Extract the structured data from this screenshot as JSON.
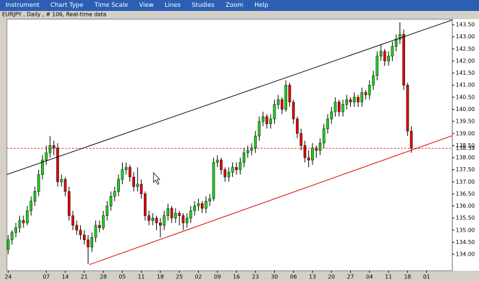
{
  "menu": [
    "Instrument",
    "Chart Type",
    "Time Scale",
    "View",
    "Lines",
    "Studies",
    "Zoom",
    "Help"
  ],
  "chart_data": {
    "type": "candlestick",
    "title": "EURJPY , Daily , # 106, Real-time data",
    "up_color": "#19d219",
    "down_color": "#e00000",
    "candles": [
      [
        134.2,
        134.8,
        134.0,
        134.6
      ],
      [
        134.6,
        135.0,
        134.4,
        134.9
      ],
      [
        134.9,
        135.3,
        134.7,
        135.1
      ],
      [
        135.1,
        135.6,
        134.9,
        135.4
      ],
      [
        135.4,
        135.6,
        135.1,
        135.3
      ],
      [
        135.3,
        136.0,
        135.2,
        135.8
      ],
      [
        135.8,
        136.4,
        135.6,
        136.2
      ],
      [
        136.2,
        136.8,
        136.0,
        136.6
      ],
      [
        136.6,
        137.5,
        136.4,
        137.3
      ],
      [
        137.3,
        138.1,
        137.1,
        137.9
      ],
      [
        137.9,
        138.5,
        137.7,
        138.2
      ],
      [
        138.2,
        138.9,
        138.0,
        138.5
      ],
      [
        138.5,
        138.7,
        138.1,
        138.4
      ],
      [
        138.4,
        138.6,
        136.8,
        137.0
      ],
      [
        137.0,
        137.3,
        136.8,
        137.1
      ],
      [
        137.1,
        137.2,
        136.4,
        136.6
      ],
      [
        136.6,
        136.8,
        135.4,
        135.6
      ],
      [
        135.6,
        135.8,
        135.0,
        135.2
      ],
      [
        135.2,
        135.4,
        134.8,
        135.0
      ],
      [
        135.0,
        135.2,
        134.6,
        134.8
      ],
      [
        134.8,
        135.0,
        134.4,
        134.6
      ],
      [
        134.6,
        134.8,
        133.6,
        134.3
      ],
      [
        134.3,
        134.9,
        134.1,
        134.7
      ],
      [
        134.7,
        135.4,
        134.5,
        135.2
      ],
      [
        135.2,
        135.4,
        134.9,
        135.1
      ],
      [
        135.1,
        135.8,
        135.0,
        135.6
      ],
      [
        135.6,
        136.2,
        135.4,
        136.0
      ],
      [
        136.0,
        136.6,
        135.8,
        136.4
      ],
      [
        136.4,
        136.8,
        136.2,
        136.6
      ],
      [
        136.6,
        137.3,
        136.4,
        137.1
      ],
      [
        137.1,
        137.8,
        136.9,
        137.5
      ],
      [
        137.5,
        137.8,
        137.3,
        137.6
      ],
      [
        137.6,
        137.7,
        137.0,
        137.2
      ],
      [
        137.2,
        137.4,
        136.6,
        136.8
      ],
      [
        136.8,
        137.6,
        136.6,
        136.9
      ],
      [
        136.9,
        137.1,
        136.3,
        136.5
      ],
      [
        136.5,
        136.6,
        135.4,
        135.6
      ],
      [
        135.6,
        135.8,
        135.2,
        135.4
      ],
      [
        135.4,
        135.7,
        135.2,
        135.5
      ],
      [
        135.5,
        135.6,
        135.0,
        135.3
      ],
      [
        135.3,
        135.5,
        134.7,
        135.2
      ],
      [
        135.2,
        135.8,
        135.0,
        135.6
      ],
      [
        135.6,
        136.1,
        135.4,
        135.9
      ],
      [
        135.9,
        136.0,
        135.3,
        135.5
      ],
      [
        135.5,
        135.9,
        135.3,
        135.7
      ],
      [
        135.7,
        135.8,
        135.2,
        135.6
      ],
      [
        135.6,
        135.7,
        135.0,
        135.3
      ],
      [
        135.3,
        135.7,
        135.1,
        135.5
      ],
      [
        135.5,
        136.0,
        135.3,
        135.8
      ],
      [
        135.8,
        136.2,
        135.6,
        136.0
      ],
      [
        136.0,
        136.3,
        135.8,
        136.1
      ],
      [
        136.1,
        136.2,
        135.7,
        135.9
      ],
      [
        135.9,
        136.4,
        135.7,
        136.2
      ],
      [
        136.2,
        136.5,
        136.0,
        136.3
      ],
      [
        136.3,
        138.0,
        136.2,
        137.8
      ],
      [
        137.8,
        138.1,
        137.6,
        137.9
      ],
      [
        137.9,
        138.0,
        137.3,
        137.5
      ],
      [
        137.5,
        137.6,
        137.0,
        137.2
      ],
      [
        137.2,
        137.6,
        137.0,
        137.4
      ],
      [
        137.4,
        137.8,
        137.2,
        137.6
      ],
      [
        137.6,
        137.8,
        137.3,
        137.5
      ],
      [
        137.5,
        138.0,
        137.3,
        137.8
      ],
      [
        137.8,
        138.4,
        137.6,
        138.2
      ],
      [
        138.2,
        138.5,
        138.0,
        138.3
      ],
      [
        138.3,
        138.6,
        138.1,
        138.4
      ],
      [
        138.4,
        139.1,
        138.2,
        138.9
      ],
      [
        138.9,
        139.7,
        138.7,
        139.5
      ],
      [
        139.5,
        139.9,
        139.3,
        139.7
      ],
      [
        139.7,
        139.8,
        139.2,
        139.4
      ],
      [
        139.4,
        139.8,
        139.2,
        139.6
      ],
      [
        139.6,
        140.4,
        139.4,
        140.2
      ],
      [
        140.2,
        140.6,
        140.0,
        140.4
      ],
      [
        140.4,
        140.5,
        139.8,
        140.0
      ],
      [
        140.0,
        141.2,
        139.9,
        141.0
      ],
      [
        141.0,
        141.1,
        140.1,
        140.3
      ],
      [
        140.3,
        140.4,
        139.4,
        139.6
      ],
      [
        139.6,
        139.7,
        138.8,
        139.0
      ],
      [
        139.0,
        139.2,
        138.3,
        138.5
      ],
      [
        138.5,
        138.7,
        137.8,
        138.0
      ],
      [
        138.0,
        138.3,
        137.6,
        137.9
      ],
      [
        137.9,
        138.6,
        137.7,
        138.4
      ],
      [
        138.4,
        138.5,
        138.0,
        138.3
      ],
      [
        138.3,
        138.8,
        138.1,
        138.6
      ],
      [
        138.6,
        139.4,
        138.4,
        139.2
      ],
      [
        139.2,
        139.8,
        139.0,
        139.6
      ],
      [
        139.6,
        140.1,
        139.4,
        139.9
      ],
      [
        139.9,
        140.5,
        139.7,
        140.3
      ],
      [
        140.3,
        140.4,
        139.7,
        139.9
      ],
      [
        139.9,
        140.4,
        139.7,
        140.2
      ],
      [
        140.2,
        140.6,
        140.0,
        140.4
      ],
      [
        140.4,
        140.5,
        140.1,
        140.3
      ],
      [
        140.3,
        140.7,
        140.1,
        140.5
      ],
      [
        140.5,
        140.6,
        140.1,
        140.3
      ],
      [
        140.3,
        140.9,
        140.1,
        140.7
      ],
      [
        140.7,
        140.8,
        140.4,
        140.6
      ],
      [
        140.6,
        141.2,
        140.4,
        141.0
      ],
      [
        141.0,
        141.6,
        140.8,
        141.4
      ],
      [
        141.4,
        142.4,
        141.2,
        142.2
      ],
      [
        142.2,
        142.7,
        142.0,
        142.4
      ],
      [
        142.4,
        142.5,
        141.8,
        142.0
      ],
      [
        142.0,
        142.4,
        141.8,
        142.2
      ],
      [
        142.2,
        142.8,
        142.0,
        142.6
      ],
      [
        142.6,
        143.1,
        142.4,
        142.9
      ],
      [
        142.9,
        143.6,
        142.7,
        143.1
      ],
      [
        143.1,
        143.3,
        140.8,
        141.0
      ],
      [
        141.0,
        141.1,
        138.9,
        139.1
      ],
      [
        139.1,
        139.3,
        138.2,
        138.39
      ]
    ],
    "last_price": 138.39,
    "last_price_color": "#e00000",
    "trendlines": [
      {
        "color": "#000000",
        "x": [
          -0.36,
          116.76
        ],
        "y": [
          137.3,
          143.7
        ]
      },
      {
        "color": "#e00000",
        "x": [
          21.3,
          116.76
        ],
        "y": [
          133.57,
          138.91
        ]
      }
    ],
    "xlim": [
      -0.36,
      116.76
    ],
    "xticks": [
      {
        "value": 0,
        "label": "24"
      },
      {
        "value": 10,
        "label": "07"
      },
      {
        "value": 15,
        "label": "14"
      },
      {
        "value": 20,
        "label": "21"
      },
      {
        "value": 25,
        "label": "28"
      },
      {
        "value": 30,
        "label": "05"
      },
      {
        "value": 35,
        "label": "11"
      },
      {
        "value": 40,
        "label": "18"
      },
      {
        "value": 45,
        "label": "25"
      },
      {
        "value": 50,
        "label": "02"
      },
      {
        "value": 55,
        "label": "09"
      },
      {
        "value": 60,
        "label": "16"
      },
      {
        "value": 65,
        "label": "23"
      },
      {
        "value": 70,
        "label": "30"
      },
      {
        "value": 75,
        "label": "06"
      },
      {
        "value": 80,
        "label": "13"
      },
      {
        "value": 85,
        "label": "20"
      },
      {
        "value": 90,
        "label": "27"
      },
      {
        "value": 95,
        "label": "04"
      },
      {
        "value": 100,
        "label": "11"
      },
      {
        "value": 105,
        "label": "18"
      },
      {
        "value": 110,
        "label": "01"
      }
    ],
    "ylim": [
      133.32,
      143.73
    ],
    "yticks": [
      {
        "value": 134,
        "label": "134.00"
      },
      {
        "value": 134.5,
        "label": "134.50"
      },
      {
        "value": 135,
        "label": "135.00"
      },
      {
        "value": 135.5,
        "label": "135.50"
      },
      {
        "value": 136,
        "label": "136.00"
      },
      {
        "value": 136.5,
        "label": "136.50"
      },
      {
        "value": 137,
        "label": "137.00"
      },
      {
        "value": 137.5,
        "label": "137.50"
      },
      {
        "value": 138,
        "label": "138.00"
      },
      {
        "value": 138.5,
        "label": "138.50"
      },
      {
        "value": 139,
        "label": "139.00"
      },
      {
        "value": 139.5,
        "label": "139.50"
      },
      {
        "value": 140,
        "label": "140.00"
      },
      {
        "value": 140.5,
        "label": "140.50"
      },
      {
        "value": 141,
        "label": "141.00"
      },
      {
        "value": 141.5,
        "label": "141.50"
      },
      {
        "value": 142,
        "label": "142.00"
      },
      {
        "value": 142.5,
        "label": "142.50"
      },
      {
        "value": 143,
        "label": "143.00"
      },
      {
        "value": 143.5,
        "label": "143.50"
      }
    ]
  }
}
